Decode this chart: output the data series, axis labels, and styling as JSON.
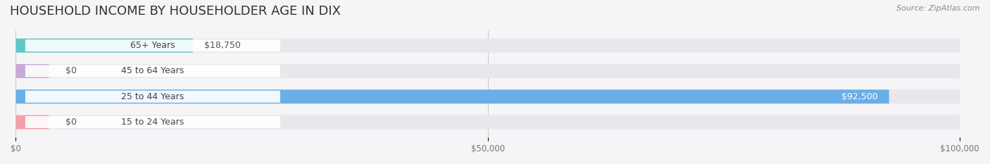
{
  "title": "HOUSEHOLD INCOME BY HOUSEHOLDER AGE IN DIX",
  "source": "Source: ZipAtlas.com",
  "categories": [
    "15 to 24 Years",
    "25 to 44 Years",
    "45 to 64 Years",
    "65+ Years"
  ],
  "values": [
    0,
    92500,
    0,
    18750
  ],
  "bar_colors": [
    "#f4a0a8",
    "#6aaee8",
    "#c9a8d4",
    "#5ec8c8"
  ],
  "track_color": "#e8e8ec",
  "xlim": [
    0,
    100000
  ],
  "xticks": [
    0,
    50000,
    100000
  ],
  "xtick_labels": [
    "$0",
    "$50,000",
    "$100,000"
  ],
  "value_labels": [
    "$0",
    "$92,500",
    "$0",
    "$18,750"
  ],
  "bar_height": 0.55,
  "figsize": [
    14.06,
    2.33
  ],
  "dpi": 100,
  "bg_color": "#f5f5f8",
  "title_fontsize": 13,
  "label_fontsize": 9,
  "tick_fontsize": 8.5,
  "source_fontsize": 8
}
